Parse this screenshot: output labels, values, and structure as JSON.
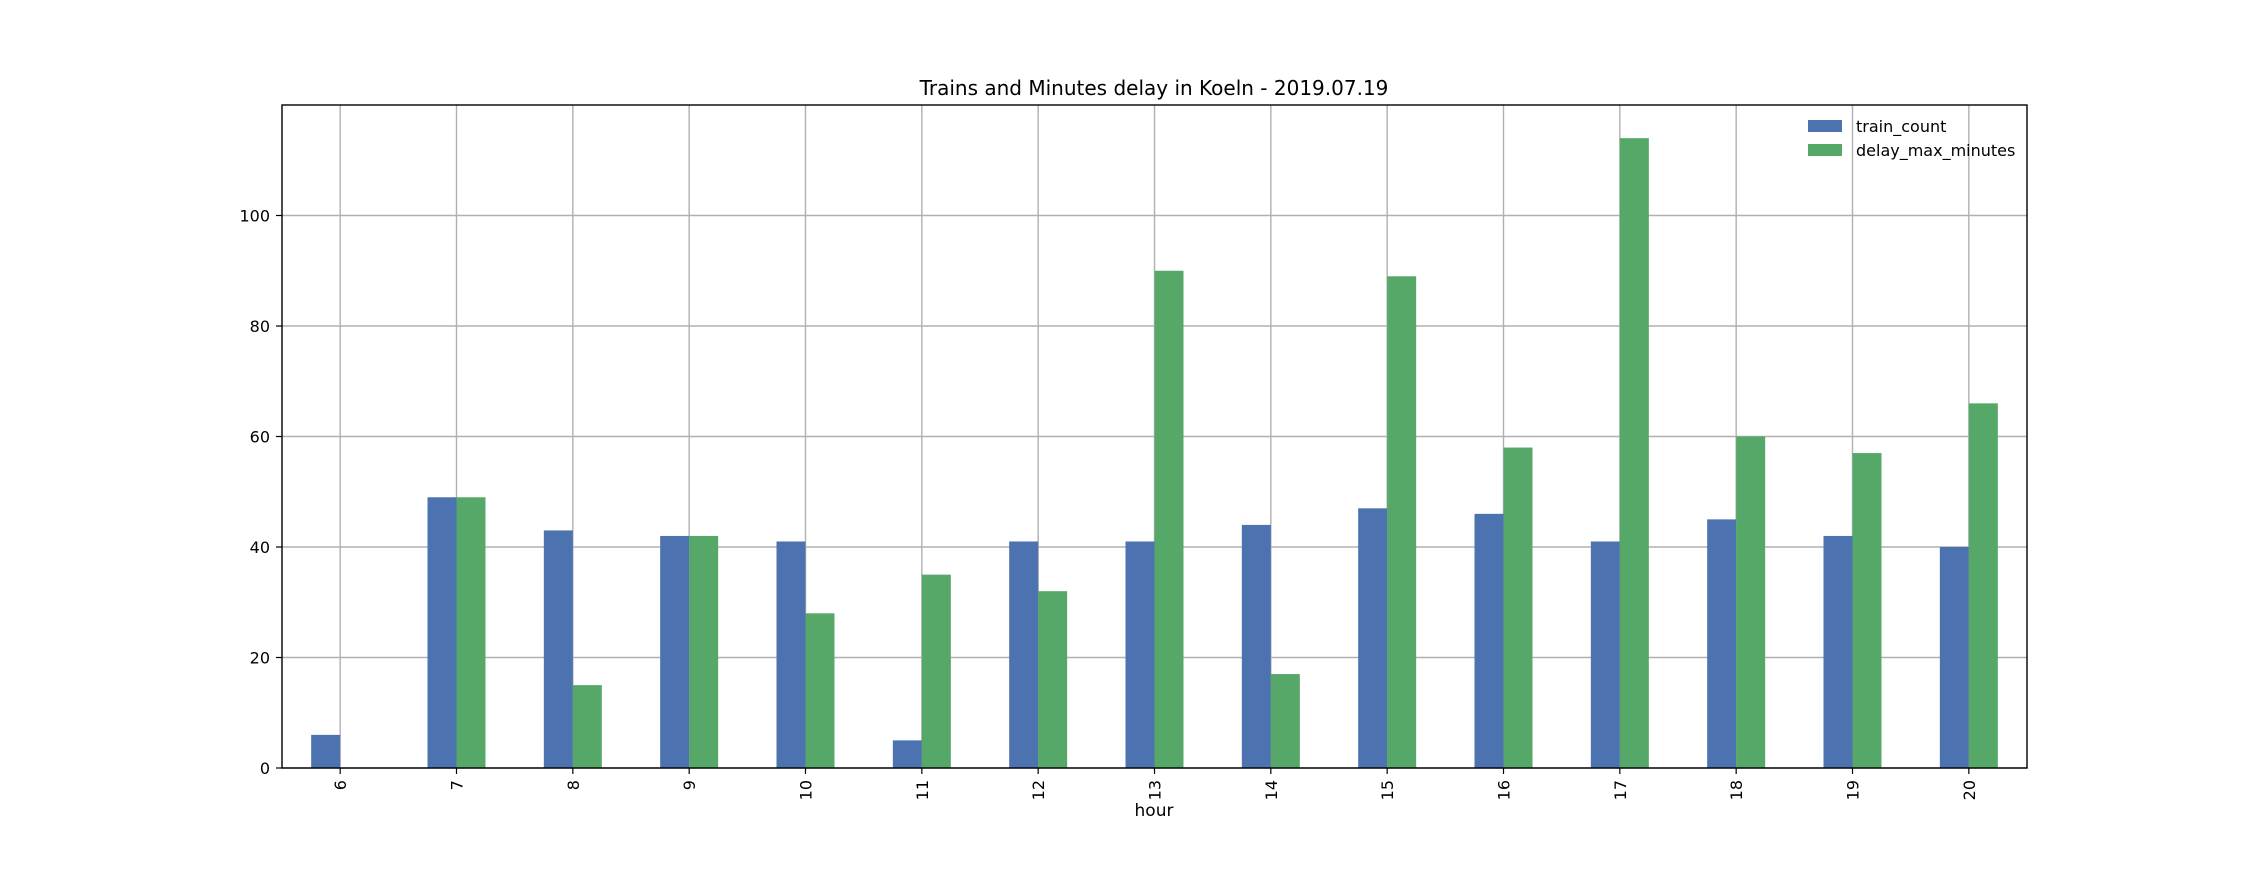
{
  "chart_data": {
    "type": "bar",
    "title": "Trains and Minutes delay in Koeln - 2019.07.19",
    "xlabel": "hour",
    "ylabel": "",
    "categories": [
      "6",
      "7",
      "8",
      "9",
      "10",
      "11",
      "12",
      "13",
      "14",
      "15",
      "16",
      "17",
      "18",
      "19",
      "20"
    ],
    "series": [
      {
        "name": "train_count",
        "color": "#4c72b0",
        "values": [
          6,
          49,
          43,
          42,
          41,
          5,
          41,
          41,
          44,
          47,
          46,
          41,
          45,
          42,
          40
        ]
      },
      {
        "name": "delay_max_minutes",
        "color": "#55a868",
        "values": [
          0,
          49,
          15,
          42,
          28,
          35,
          32,
          90,
          17,
          89,
          58,
          114,
          60,
          57,
          66
        ]
      }
    ],
    "ylim": [
      0,
      120
    ],
    "yticks": [
      0,
      20,
      40,
      60,
      80,
      100
    ],
    "grid": true,
    "legend_position": "top-right",
    "x_tick_rotation": "vertical"
  }
}
